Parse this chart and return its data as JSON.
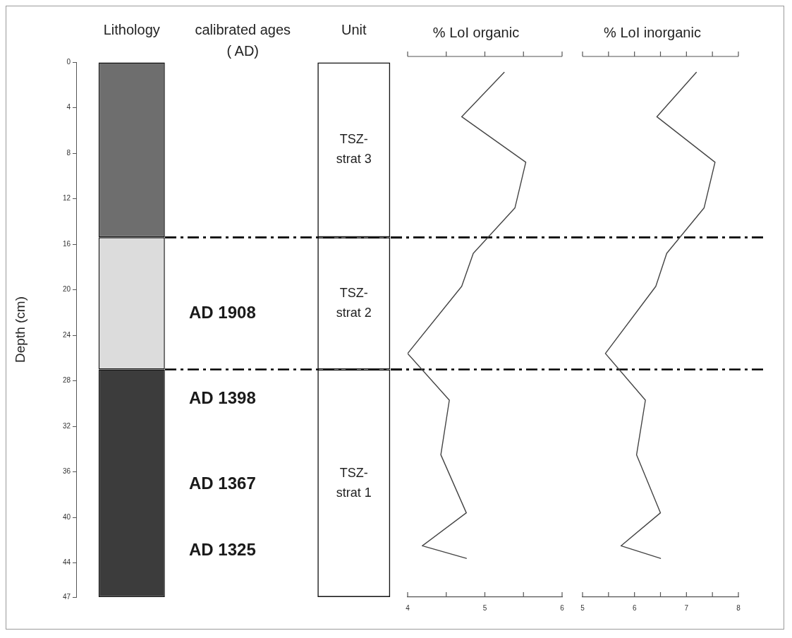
{
  "chart_data": [
    {
      "type": "bar",
      "categories": [
        "Lithology",
        "calibrated ages ( AD)",
        "Unit"
      ],
      "ylabel": "Depth (cm)",
      "stacked": true,
      "series": [
        {
          "color": "#6e6e6e",
          "values": [
            15.4,
            null,
            null
          ]
        },
        {
          "color": "#dcdcdc",
          "values": [
            11.6,
            null,
            null
          ]
        },
        {
          "color": "#3c3c3c",
          "values": [
            20.0,
            null,
            null
          ]
        },
        {
          "name": "TSZ-strat 3",
          "values": [
            null,
            null,
            15.4
          ]
        },
        {
          "name": "TSZ-strat 2",
          "values": [
            null,
            null,
            11.6
          ]
        },
        {
          "name": "TSZ-strat 1",
          "values": [
            null,
            null,
            20.0
          ]
        }
      ],
      "ylim": [
        47,
        0
      ],
      "yticks": [
        0,
        4,
        8,
        12,
        16,
        20,
        24,
        28,
        32,
        36,
        40,
        44,
        47
      ],
      "annotations": [
        "AD 1908",
        "AD 1398",
        "AD 1367",
        "AD 1325"
      ],
      "ref_lines": [
        {
          "axis": "y",
          "value": 15.4,
          "color": "#000000",
          "line_style": "dashed"
        },
        {
          "axis": "y",
          "value": 27.0,
          "color": "#000000",
          "line_style": "dashed"
        }
      ]
    },
    {
      "type": "line",
      "title": "% LoI organic",
      "orientation": "horizontal",
      "x": [
        0.9,
        4.8,
        8.8,
        12.8,
        16.8,
        19.7,
        25.6,
        29.7,
        34.5,
        39.6,
        42.5,
        43.6
      ],
      "series": [
        {
          "color": "#444444",
          "values": [
            5.25,
            4.7,
            5.53,
            5.39,
            4.85,
            4.7,
            4.0,
            4.54,
            4.43,
            4.76,
            4.19,
            4.76
          ]
        }
      ],
      "xlim": [
        4,
        6
      ],
      "xticks": [
        4,
        {
          "value": 4.5,
          "label": null
        },
        5,
        {
          "value": 5.5,
          "label": null
        },
        6
      ],
      "ylim": [
        47,
        0
      ],
      "tick_labels": "x",
      "marker": "none",
      "ref_lines": [
        {
          "axis": "y",
          "value": 15.4,
          "color": "#000000",
          "line_style": "dashed"
        },
        {
          "axis": "y",
          "value": 27.0,
          "color": "#000000",
          "line_style": "dashed"
        }
      ]
    },
    {
      "type": "line",
      "title": "% LoI inorganic",
      "orientation": "horizontal",
      "x": [
        0.9,
        4.8,
        8.8,
        12.8,
        16.8,
        19.7,
        25.6,
        29.7,
        34.5,
        39.6,
        42.5,
        43.6
      ],
      "series": [
        {
          "color": "#444444",
          "values": [
            7.19,
            6.43,
            7.55,
            7.34,
            6.62,
            6.41,
            5.44,
            6.21,
            6.04,
            6.5,
            5.74,
            6.5
          ]
        }
      ],
      "xlim": [
        5,
        8
      ],
      "xticks": [
        5,
        {
          "value": 5.5,
          "label": null
        },
        6,
        {
          "value": 6.5,
          "label": null
        },
        7,
        {
          "value": 7.5,
          "label": null
        },
        8
      ],
      "ylim": [
        47,
        0
      ],
      "tick_labels": "x",
      "marker": "none",
      "ref_lines": [
        {
          "axis": "y",
          "value": 15.4,
          "color": "#000000",
          "line_style": "dashed"
        },
        {
          "axis": "y",
          "value": 27.0,
          "color": "#000000",
          "line_style": "dashed"
        }
      ]
    }
  ]
}
